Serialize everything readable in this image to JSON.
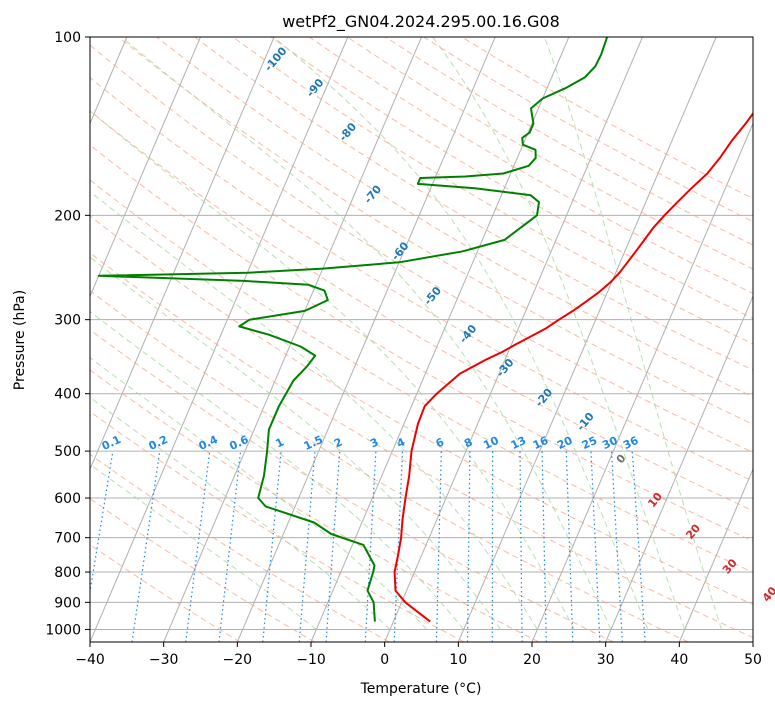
{
  "chart_data": {
    "type": "line",
    "title": "wetPf2_GN04.2024.295.00.16.G08",
    "xlabel": "Temperature (°C)",
    "ylabel": "Pressure (hPa)",
    "xlim": [
      -40,
      50
    ],
    "ylim": [
      1050,
      100
    ],
    "y_scale": "log",
    "grid": true,
    "x_ticks": [
      -40,
      -30,
      -20,
      -10,
      0,
      10,
      20,
      30,
      40,
      50
    ],
    "y_ticks": [
      100,
      200,
      300,
      400,
      500,
      600,
      700,
      800,
      900,
      1000
    ],
    "series": [
      {
        "color": "#ee0000",
        "points": [
          [
            5,
            970
          ],
          [
            0.5,
            900
          ],
          [
            -1.5,
            860
          ],
          [
            -2.7,
            800
          ],
          [
            -3.2,
            750
          ],
          [
            -3.8,
            700
          ],
          [
            -4.7,
            650
          ],
          [
            -5.5,
            600
          ],
          [
            -6.3,
            550
          ],
          [
            -7.4,
            500
          ],
          [
            -8.1,
            450
          ],
          [
            -8.2,
            420
          ],
          [
            -7.3,
            400
          ],
          [
            -5.3,
            370
          ],
          [
            -2.5,
            350
          ],
          [
            -0.8,
            340
          ],
          [
            0.6,
            330
          ],
          [
            2.2,
            320
          ],
          [
            3.8,
            310
          ],
          [
            5.0,
            300
          ],
          [
            6.4,
            290
          ],
          [
            7.6,
            280
          ],
          [
            8.8,
            270
          ],
          [
            9.8,
            260
          ],
          [
            10.5,
            250
          ],
          [
            11.0,
            240
          ],
          [
            11.5,
            230
          ],
          [
            12.0,
            220
          ],
          [
            12.5,
            210
          ],
          [
            13.3,
            200
          ],
          [
            14.3,
            190
          ],
          [
            15.4,
            180
          ],
          [
            16.7,
            170
          ],
          [
            17.5,
            160
          ],
          [
            18.1,
            150
          ],
          [
            19.0,
            140
          ],
          [
            19.8,
            130
          ],
          [
            20.8,
            120
          ],
          [
            22.4,
            110
          ],
          [
            25.6,
            100
          ]
        ]
      },
      {
        "color": "#008000",
        "points": [
          [
            -2.5,
            970
          ],
          [
            -3.8,
            900
          ],
          [
            -5.3,
            860
          ],
          [
            -5.6,
            800
          ],
          [
            -5.8,
            780
          ],
          [
            -8.5,
            720
          ],
          [
            -13.5,
            690
          ],
          [
            -16.5,
            660
          ],
          [
            -24,
            620
          ],
          [
            -25.5,
            600
          ],
          [
            -26,
            550
          ],
          [
            -27,
            500
          ],
          [
            -28,
            460
          ],
          [
            -28,
            420
          ],
          [
            -27.5,
            380
          ],
          [
            -26.5,
            360
          ],
          [
            -26,
            345
          ],
          [
            -28.5,
            333
          ],
          [
            -33.5,
            318
          ],
          [
            -38,
            308
          ],
          [
            -37,
            300
          ],
          [
            -30,
            290
          ],
          [
            -27.5,
            278
          ],
          [
            -28.5,
            268
          ],
          [
            -31,
            262
          ],
          [
            -40,
            258
          ],
          [
            -60,
            253
          ],
          [
            -60,
            253
          ],
          [
            -40,
            250
          ],
          [
            -30,
            246
          ],
          [
            -20,
            240
          ],
          [
            -12,
            230
          ],
          [
            -7,
            220
          ],
          [
            -4,
            200
          ],
          [
            -4.5,
            190
          ],
          [
            -6,
            185
          ],
          [
            -14,
            180
          ],
          [
            -22,
            177
          ],
          [
            -22,
            173
          ],
          [
            -16,
            172
          ],
          [
            -11,
            170
          ],
          [
            -8,
            165
          ],
          [
            -7.5,
            160
          ],
          [
            -8,
            155
          ],
          [
            -10,
            152
          ],
          [
            -10.5,
            148
          ],
          [
            -9.8,
            145
          ],
          [
            -9.8,
            140
          ],
          [
            -11,
            132
          ],
          [
            -10,
            127
          ],
          [
            -7.5,
            122
          ],
          [
            -5.5,
            117
          ],
          [
            -4.7,
            112
          ],
          [
            -4.6,
            107
          ],
          [
            -4.8,
            100
          ]
        ]
      }
    ],
    "reference_lines": {
      "dry_adiabats_theta_K": [
        250,
        260,
        270,
        280,
        290,
        300,
        310,
        320,
        330,
        340,
        350,
        360,
        370,
        380,
        390,
        400,
        410,
        420,
        430,
        440,
        450,
        460,
        470,
        480
      ],
      "moist_adiabats_labels": [
        "-100",
        "-90",
        "-80",
        "-70",
        "-60",
        "-50",
        "-40",
        "-30",
        "-20",
        "-10",
        "0",
        "10",
        "20",
        "30",
        "40"
      ],
      "mixing_ratio_labels": [
        "0.1",
        "0.2",
        "0.4",
        "0.6",
        "1",
        "1.5",
        "2",
        "3",
        "4",
        "6",
        "8",
        "10",
        "13",
        "16",
        "20",
        "25",
        "30",
        "36"
      ]
    },
    "colors": {
      "temperature": "#ee0000",
      "dewpoint": "#008000",
      "dry_adiabat": "#f4a582",
      "moist_adiabat": "#a6d8a0",
      "mixing_ratio": "#1e88e5",
      "isotherm_grid": "#b0b0b0",
      "moist_label": "#1f77b4",
      "warm_label": "#d62728",
      "zero_label": "#707070"
    }
  }
}
